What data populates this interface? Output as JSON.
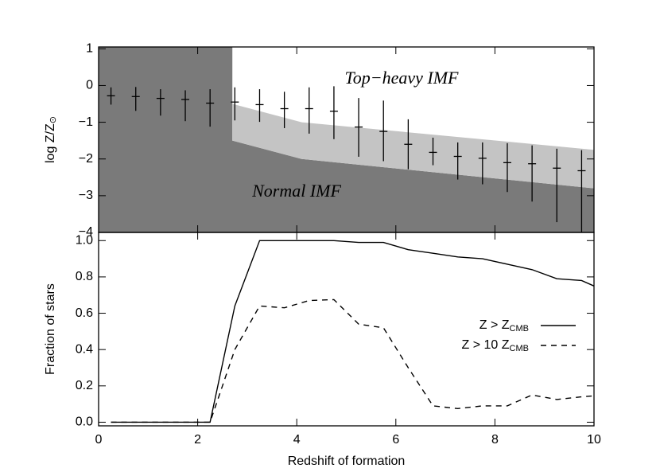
{
  "chart_data": [
    {
      "type": "errorbar",
      "ylabel": "log Z/Z",
      "ylabel_sub": "⊙",
      "xlim": [
        0,
        10
      ],
      "xticks": [
        0,
        2,
        4,
        6,
        8,
        10
      ],
      "ylim": [
        -4,
        1.05
      ],
      "yticks": [
        {
          "value": 1,
          "label": "1"
        },
        {
          "value": 0,
          "label": "0"
        },
        {
          "value": -1,
          "label": "−1"
        },
        {
          "value": -2,
          "label": "−2"
        },
        {
          "value": -3,
          "label": "−3"
        },
        {
          "value": -4,
          "label": "−4"
        }
      ],
      "annotations": [
        "Top−heavy IMF",
        "Normal IMF"
      ],
      "regions": {
        "split_x": 2.7,
        "x": [
          2.7,
          4.1,
          10
        ],
        "lower": [
          -1.5,
          -2.0,
          -2.8
        ],
        "upper": [
          -0.5,
          -1.0,
          -1.75
        ],
        "dark_color": "#7a7a7a",
        "light_color": "#c4c4c4"
      },
      "x": [
        0.25,
        0.75,
        1.25,
        1.75,
        2.25,
        2.75,
        3.25,
        3.75,
        4.25,
        4.75,
        5.25,
        5.75,
        6.25,
        6.75,
        7.25,
        7.75,
        8.25,
        8.75,
        9.25,
        9.75
      ],
      "values": [
        -0.28,
        -0.3,
        -0.35,
        -0.38,
        -0.48,
        -0.45,
        -0.52,
        -0.63,
        -0.63,
        -0.7,
        -1.13,
        -1.25,
        -1.6,
        -1.82,
        -1.93,
        -1.98,
        -2.1,
        -2.13,
        -2.25,
        -2.32
      ],
      "low": [
        -0.52,
        -0.69,
        -0.82,
        -0.97,
        -1.12,
        -0.95,
        -0.99,
        -1.16,
        -1.31,
        -1.46,
        -1.94,
        -2.06,
        -2.28,
        -2.17,
        -2.56,
        -2.69,
        -2.9,
        -3.16,
        -3.72,
        -4.0
      ],
      "high": [
        -0.05,
        -0.04,
        -0.1,
        -0.13,
        -0.1,
        -0.05,
        -0.1,
        -0.17,
        -0.05,
        -0.02,
        -0.34,
        -0.41,
        -0.92,
        -1.42,
        -1.55,
        -1.55,
        -1.57,
        -1.63,
        -1.72,
        -1.76
      ],
      "color": "#000000"
    },
    {
      "type": "line",
      "xlabel": "Redshift of formation",
      "ylabel": "Fraction of stars",
      "xlim": [
        0,
        10
      ],
      "xticks": [
        0,
        2,
        4,
        6,
        8,
        10
      ],
      "ylim": [
        -0.02,
        1.045
      ],
      "yticks": [
        {
          "value": 0,
          "label": "0.0"
        },
        0.2,
        0.4,
        0.6,
        0.8,
        {
          "value": 1,
          "label": "1.0"
        }
      ],
      "x": [
        0.25,
        0.75,
        1.25,
        1.75,
        2.25,
        2.75,
        3.25,
        3.75,
        4.25,
        4.75,
        5.25,
        5.75,
        6.25,
        6.75,
        7.25,
        7.75,
        8.25,
        8.75,
        9.25,
        9.75,
        10
      ],
      "series": [
        {
          "name": "Z > Z",
          "name_sub": "CMB",
          "color": "#000000",
          "dash": false,
          "values": [
            0,
            0,
            0,
            0,
            0,
            0.64,
            1.0,
            1.0,
            1.0,
            1.0,
            0.99,
            0.99,
            0.95,
            0.93,
            0.91,
            0.9,
            0.87,
            0.84,
            0.79,
            0.78,
            0.75
          ]
        },
        {
          "name": "Z > 10 Z",
          "name_sub": "CMB",
          "color": "#000000",
          "dash": true,
          "values": [
            0,
            0,
            0,
            0,
            0,
            0.4,
            0.64,
            0.63,
            0.67,
            0.675,
            0.54,
            0.52,
            0.3,
            0.09,
            0.075,
            0.09,
            0.09,
            0.15,
            0.125,
            0.14,
            0.145
          ]
        }
      ]
    }
  ]
}
